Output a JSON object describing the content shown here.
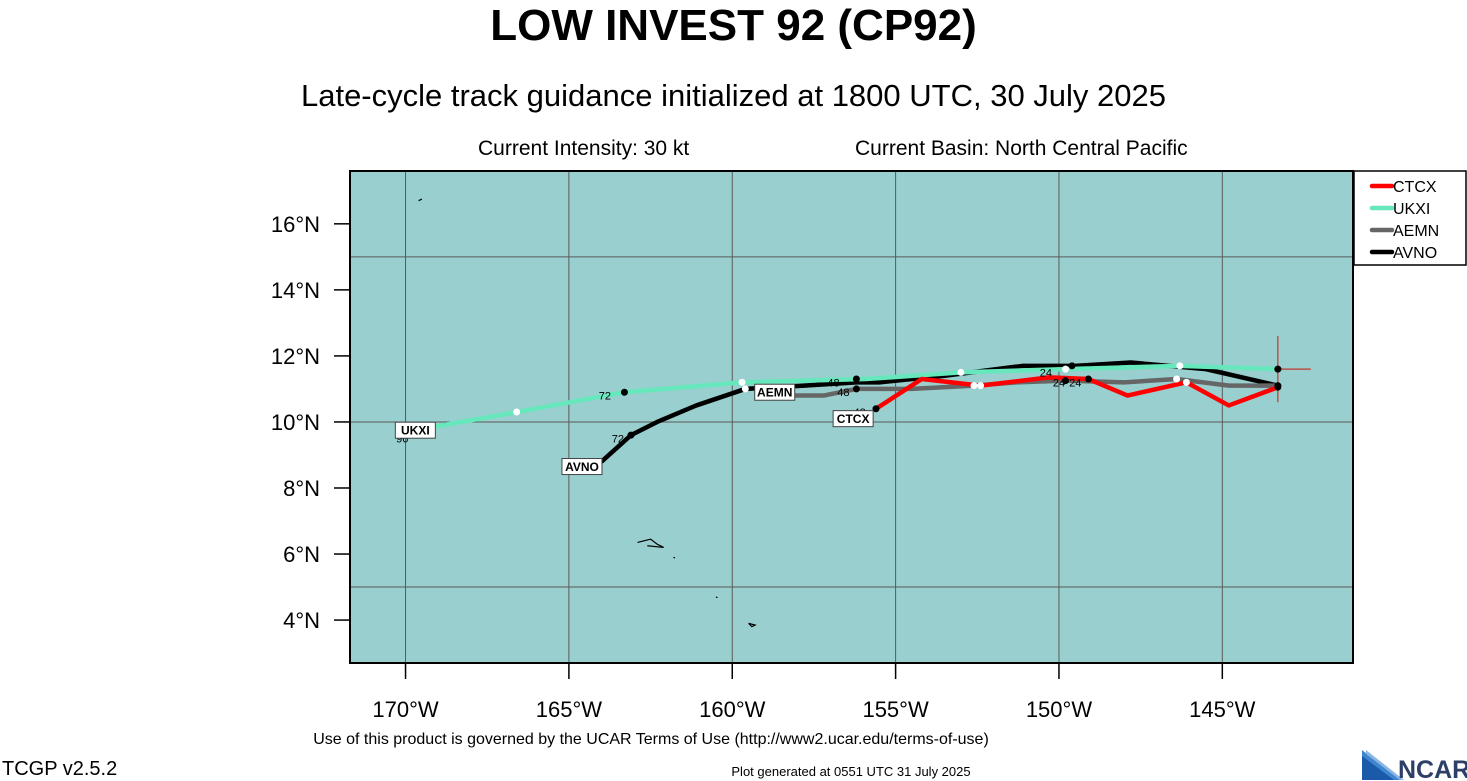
{
  "title": "LOW INVEST 92 (CP92)",
  "subtitle": "Late-cycle track guidance initialized at 1800 UTC, 30 July 2025",
  "info": {
    "intensity": "Current Intensity: 30 kt",
    "basin": "Current Basin: North Central Pacific"
  },
  "footer": {
    "terms": "Use of this product is governed by the UCAR Terms of Use (http://www2.ucar.edu/terms-of-use)",
    "version": "TCGP v2.5.2",
    "generated": "Plot generated at 0551 UTC   31 July 2025",
    "logo_text": "NCAR"
  },
  "chart_data": {
    "type": "line",
    "map": "track guidance",
    "xlim": [
      -171.7,
      -141.0
    ],
    "ylim": [
      2.7,
      17.6
    ],
    "x_ticks": [
      -170,
      -165,
      -160,
      -155,
      -150,
      -145
    ],
    "x_tick_labels": [
      "170°W",
      "165°W",
      "160°W",
      "155°W",
      "150°W",
      "145°W"
    ],
    "y_ticks": [
      4,
      6,
      8,
      10,
      12,
      14,
      16
    ],
    "y_tick_labels": [
      "4°N",
      "6°N",
      "8°N",
      "10°N",
      "12°N",
      "14°N",
      "16°N"
    ],
    "grid_lons": [
      -170,
      -165,
      -160,
      -155,
      -150,
      -145
    ],
    "grid_lats": [
      5,
      10,
      15
    ],
    "ocean_color": "#99cfcf",
    "legend_position": "top-right, outside plot",
    "current_position": {
      "lon": -143.3,
      "lat": 11.6
    },
    "series": [
      {
        "name": "CTCX",
        "color": "#ff0000",
        "lon": [
          -143.3,
          -144.8,
          -146.1,
          -147.9,
          -149.1,
          -150.3,
          -152.4,
          -154.2,
          -155.6
        ],
        "lat": [
          11.05,
          10.5,
          11.2,
          10.8,
          11.3,
          11.35,
          11.1,
          11.3,
          10.4
        ],
        "markers": [
          {
            "lon": -146.1,
            "lat": 11.2,
            "fill": "white"
          },
          {
            "lon": -149.1,
            "lat": 11.3,
            "fill": "black"
          },
          {
            "lon": -152.4,
            "lat": 11.1,
            "fill": "white"
          },
          {
            "lon": -155.6,
            "lat": 10.4,
            "fill": "black"
          }
        ],
        "hour_labels": [
          {
            "text": "24",
            "lon": -150.0,
            "lat": 11.2
          },
          {
            "text": "48",
            "lon": -156.1,
            "lat": 10.3
          }
        ],
        "end_label": {
          "text": "CTCX",
          "lon": -156.3,
          "lat": 10.1
        }
      },
      {
        "name": "UKXI",
        "color": "#66e8bc",
        "lon": [
          -143.3,
          -146.3,
          -149.8,
          -153.0,
          -155.9,
          -159.7,
          -163.3,
          -166.6,
          -170.0
        ],
        "lat": [
          11.6,
          11.7,
          11.6,
          11.5,
          11.3,
          11.2,
          10.9,
          10.3,
          9.7
        ],
        "markers": [
          {
            "lon": -146.3,
            "lat": 11.7,
            "fill": "white"
          },
          {
            "lon": -149.8,
            "lat": 11.6,
            "fill": "white"
          },
          {
            "lon": -153.0,
            "lat": 11.5,
            "fill": "white"
          },
          {
            "lon": -159.7,
            "lat": 11.2,
            "fill": "white"
          },
          {
            "lon": -163.3,
            "lat": 10.9,
            "fill": "black"
          },
          {
            "lon": -166.6,
            "lat": 10.3,
            "fill": "white"
          }
        ],
        "hour_labels": [
          {
            "text": "72",
            "lon": -163.9,
            "lat": 10.8
          },
          {
            "text": "96",
            "lon": -170.1,
            "lat": 9.5
          }
        ],
        "end_label": {
          "text": "UKXI",
          "lon": -169.7,
          "lat": 9.75
        }
      },
      {
        "name": "AEMN",
        "color": "#666666",
        "lon": [
          -143.3,
          -144.8,
          -146.4,
          -148.0,
          -149.8,
          -151.3,
          -152.6,
          -154.5,
          -156.2,
          -157.2,
          -158.4
        ],
        "lat": [
          11.1,
          11.1,
          11.3,
          11.2,
          11.25,
          11.2,
          11.1,
          11.0,
          11.0,
          10.8,
          10.8
        ],
        "markers": [
          {
            "lon": -146.4,
            "lat": 11.3,
            "fill": "white"
          },
          {
            "lon": -149.8,
            "lat": 11.25,
            "fill": "black"
          },
          {
            "lon": -152.6,
            "lat": 11.1,
            "fill": "white"
          },
          {
            "lon": -156.2,
            "lat": 11.0,
            "fill": "black"
          }
        ],
        "hour_labels": [
          {
            "text": "24",
            "lon": -149.5,
            "lat": 11.2
          },
          {
            "text": "48",
            "lon": -156.6,
            "lat": 10.9
          }
        ],
        "end_label": {
          "text": "AEMN",
          "lon": -158.7,
          "lat": 10.9
        }
      },
      {
        "name": "AVNO",
        "color": "#000000",
        "lon": [
          -143.3,
          -145.5,
          -147.8,
          -149.5,
          -151.1,
          -153.5,
          -155.5,
          -156.2,
          -157.8,
          -159.6,
          -161.1,
          -162.3,
          -163.1,
          -164.0
        ],
        "lat": [
          11.1,
          11.6,
          11.8,
          11.7,
          11.7,
          11.4,
          11.2,
          11.2,
          11.1,
          11.0,
          10.5,
          10.0,
          9.6,
          8.8
        ],
        "markers": [
          {
            "lon": -143.3,
            "lat": 11.6,
            "fill": "black"
          },
          {
            "lon": -149.6,
            "lat": 11.7,
            "fill": "black"
          },
          {
            "lon": -156.2,
            "lat": 11.3,
            "fill": "black"
          },
          {
            "lon": -159.6,
            "lat": 11.0,
            "fill": "white"
          },
          {
            "lon": -163.1,
            "lat": 9.6,
            "fill": "black"
          }
        ],
        "hour_labels": [
          {
            "text": "24",
            "lon": -150.4,
            "lat": 11.5
          },
          {
            "text": "48",
            "lon": -156.9,
            "lat": 11.2
          },
          {
            "text": "72",
            "lon": -163.5,
            "lat": 9.5
          }
        ],
        "end_label": {
          "text": "AVNO",
          "lon": -164.6,
          "lat": 8.65
        }
      }
    ]
  }
}
